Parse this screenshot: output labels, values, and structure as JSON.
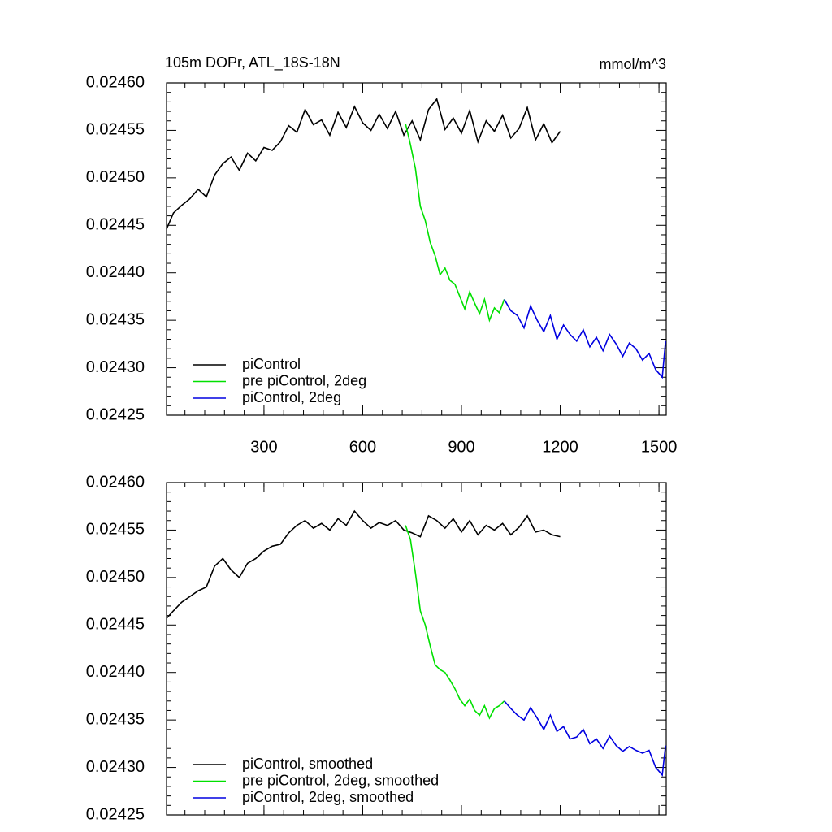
{
  "chart_data": [
    {
      "type": "line",
      "title": "105m DOPr, ATL_18S-18N",
      "units": "mmol/m^3",
      "xlim": [
        4,
        1522
      ],
      "xticks": [
        300,
        600,
        900,
        1200,
        1500
      ],
      "xtick_labels": true,
      "ylim": [
        0.02425,
        0.0246
      ],
      "yticks": [
        {
          "value": 0.02425,
          "label": "0.02425"
        },
        {
          "value": 0.0243,
          "label": "0.02430"
        },
        {
          "value": 0.02435,
          "label": "0.02435"
        },
        {
          "value": 0.0244,
          "label": "0.02440"
        },
        {
          "value": 0.02445,
          "label": "0.02445"
        },
        {
          "value": 0.0245,
          "label": "0.02450"
        },
        {
          "value": 0.02455,
          "label": "0.02455"
        },
        {
          "value": 0.0246,
          "label": "0.02460"
        }
      ],
      "legend": "lower left",
      "series": [
        {
          "name": "piControl",
          "color": "#000000",
          "x": [
            4,
            25,
            50,
            75,
            100,
            125,
            150,
            175,
            200,
            225,
            250,
            275,
            300,
            325,
            350,
            375,
            400,
            425,
            450,
            475,
            500,
            525,
            550,
            575,
            600,
            625,
            650,
            675,
            700,
            725,
            750,
            775,
            800,
            825,
            850,
            875,
            900,
            925,
            950,
            975,
            1000,
            1025,
            1050,
            1075,
            1100,
            1125,
            1150,
            1175,
            1200
          ],
          "values": [
            0.024446,
            0.024463,
            0.024471,
            0.024478,
            0.024488,
            0.02448,
            0.024503,
            0.024515,
            0.024522,
            0.024508,
            0.024526,
            0.024518,
            0.024532,
            0.024529,
            0.024538,
            0.024555,
            0.024548,
            0.024572,
            0.024556,
            0.024561,
            0.024545,
            0.024569,
            0.024553,
            0.024575,
            0.024558,
            0.02455,
            0.024567,
            0.024552,
            0.02457,
            0.024545,
            0.02456,
            0.02454,
            0.024572,
            0.024583,
            0.024551,
            0.024563,
            0.024547,
            0.024571,
            0.024538,
            0.02456,
            0.024549,
            0.024566,
            0.024542,
            0.024552,
            0.024574,
            0.02454,
            0.024557,
            0.024537,
            0.024549
          ]
        },
        {
          "name": "pre piControl, 2deg",
          "color": "#00e000",
          "x": [
            730,
            745,
            760,
            775,
            790,
            805,
            820,
            835,
            850,
            865,
            880,
            895,
            910,
            925,
            940,
            955,
            970,
            985,
            1000,
            1015,
            1030
          ],
          "values": [
            0.024557,
            0.024535,
            0.02451,
            0.02447,
            0.024455,
            0.024432,
            0.024418,
            0.024398,
            0.024405,
            0.024392,
            0.024388,
            0.024375,
            0.024362,
            0.02438,
            0.024368,
            0.024357,
            0.024372,
            0.02435,
            0.024363,
            0.024358,
            0.024372
          ]
        },
        {
          "name": "piControl, 2deg",
          "color": "#0000e0",
          "x": [
            1030,
            1050,
            1070,
            1090,
            1110,
            1130,
            1150,
            1170,
            1190,
            1210,
            1230,
            1250,
            1270,
            1290,
            1310,
            1330,
            1350,
            1370,
            1390,
            1410,
            1430,
            1450,
            1470,
            1490,
            1510,
            1520
          ],
          "values": [
            0.024372,
            0.02436,
            0.024355,
            0.024342,
            0.024365,
            0.02435,
            0.024338,
            0.024355,
            0.02433,
            0.024345,
            0.024335,
            0.024328,
            0.02434,
            0.024322,
            0.024332,
            0.024318,
            0.024335,
            0.024325,
            0.024312,
            0.024326,
            0.02432,
            0.024308,
            0.024315,
            0.024298,
            0.02429,
            0.024328
          ]
        }
      ]
    },
    {
      "type": "line",
      "xlim": [
        4,
        1522
      ],
      "xticks": [
        300,
        600,
        900,
        1200,
        1500
      ],
      "xtick_labels": false,
      "ylim": [
        0.02425,
        0.0246
      ],
      "yticks": [
        {
          "value": 0.02425,
          "label": "0.02425"
        },
        {
          "value": 0.0243,
          "label": "0.02430"
        },
        {
          "value": 0.02435,
          "label": "0.02435"
        },
        {
          "value": 0.0244,
          "label": "0.02440"
        },
        {
          "value": 0.02445,
          "label": "0.02445"
        },
        {
          "value": 0.0245,
          "label": "0.02450"
        },
        {
          "value": 0.02455,
          "label": "0.02455"
        },
        {
          "value": 0.0246,
          "label": "0.02460"
        }
      ],
      "legend": "lower left",
      "series": [
        {
          "name": "piControl, smoothed",
          "color": "#000000",
          "x": [
            4,
            25,
            50,
            75,
            100,
            125,
            150,
            175,
            200,
            225,
            250,
            275,
            300,
            325,
            350,
            375,
            400,
            425,
            450,
            475,
            500,
            525,
            550,
            575,
            600,
            625,
            650,
            675,
            700,
            725,
            750,
            775,
            800,
            825,
            850,
            875,
            900,
            925,
            950,
            975,
            1000,
            1025,
            1050,
            1075,
            1100,
            1125,
            1150,
            1175,
            1200
          ],
          "values": [
            0.024457,
            0.024465,
            0.024474,
            0.02448,
            0.024486,
            0.02449,
            0.024512,
            0.02452,
            0.024508,
            0.0245,
            0.024515,
            0.02452,
            0.024528,
            0.024533,
            0.024535,
            0.024547,
            0.024555,
            0.02456,
            0.024552,
            0.024557,
            0.02455,
            0.024562,
            0.024555,
            0.02457,
            0.02456,
            0.024552,
            0.024558,
            0.024555,
            0.02456,
            0.02455,
            0.024547,
            0.024543,
            0.024565,
            0.02456,
            0.024552,
            0.024562,
            0.024548,
            0.02456,
            0.024545,
            0.024555,
            0.02455,
            0.024557,
            0.024545,
            0.024553,
            0.024565,
            0.024548,
            0.02455,
            0.024545,
            0.024543
          ]
        },
        {
          "name": "pre piControl, 2deg, smoothed",
          "color": "#00e000",
          "x": [
            730,
            745,
            760,
            775,
            790,
            805,
            820,
            835,
            850,
            865,
            880,
            895,
            910,
            925,
            940,
            955,
            970,
            985,
            1000,
            1015,
            1030
          ],
          "values": [
            0.024555,
            0.02454,
            0.024505,
            0.024465,
            0.02445,
            0.024428,
            0.024408,
            0.024403,
            0.0244,
            0.024392,
            0.024383,
            0.024372,
            0.024365,
            0.024372,
            0.02436,
            0.024355,
            0.024365,
            0.024352,
            0.024362,
            0.024365,
            0.02437
          ]
        },
        {
          "name": "piControl, 2deg, smoothed",
          "color": "#0000e0",
          "x": [
            1030,
            1050,
            1070,
            1090,
            1110,
            1130,
            1150,
            1170,
            1190,
            1210,
            1230,
            1250,
            1270,
            1290,
            1310,
            1330,
            1350,
            1370,
            1390,
            1410,
            1430,
            1450,
            1470,
            1490,
            1510,
            1520
          ],
          "values": [
            0.02437,
            0.024362,
            0.024355,
            0.02435,
            0.024363,
            0.024352,
            0.02434,
            0.024355,
            0.024338,
            0.024343,
            0.02433,
            0.024332,
            0.02434,
            0.024325,
            0.02433,
            0.02432,
            0.024333,
            0.024323,
            0.024317,
            0.024322,
            0.024318,
            0.024315,
            0.024318,
            0.0243,
            0.024292,
            0.024323
          ]
        }
      ]
    }
  ]
}
